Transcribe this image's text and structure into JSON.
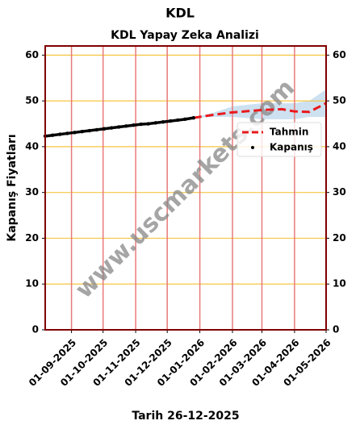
{
  "chart_data": {
    "type": "line",
    "title": "KDL",
    "subtitle": "KDL Yapay Zeka Analizi",
    "y_label": "Kapanış Fiyatları",
    "x_label": "Tarih 26-12-2025",
    "watermark": "www.uscmarkets.com",
    "xlim": [
      "07-08-2025",
      "01-05-2026"
    ],
    "xticks": [
      "01-09-2025",
      "01-10-2025",
      "01-11-2025",
      "01-12-2025",
      "01-01-2026",
      "01-02-2026",
      "01-03-2026",
      "01-04-2026",
      "01-05-2026"
    ],
    "ylim": [
      0,
      62
    ],
    "yticks": [
      0,
      10,
      20,
      30,
      40,
      50,
      60
    ],
    "grid": true,
    "legend": "upper right",
    "series": [
      {
        "name": "Tahmin",
        "color": "#e8191c",
        "style": "dashed",
        "x": [
          "26-12-2025",
          "15-01-2026",
          "01-02-2026",
          "01-03-2026",
          "20-03-2026",
          "01-04-2026",
          "15-04-2026",
          "01-05-2026"
        ],
        "values": [
          46.3,
          47.0,
          47.5,
          48.0,
          48.2,
          47.7,
          47.6,
          49.5
        ]
      },
      {
        "name": "Kapanış",
        "color": "#000000",
        "style": "dots",
        "x": [
          "07-08-2025",
          "14-08-2025",
          "21-08-2025",
          "28-08-2025",
          "04-09-2025",
          "11-09-2025",
          "18-09-2025",
          "25-09-2025",
          "02-10-2025",
          "09-10-2025",
          "16-10-2025",
          "23-10-2025",
          "30-10-2025",
          "06-11-2025",
          "13-11-2025",
          "20-11-2025",
          "27-11-2025",
          "04-12-2025",
          "11-12-2025",
          "18-12-2025",
          "26-12-2025"
        ],
        "values": [
          42.3,
          42.5,
          42.7,
          42.9,
          43.1,
          43.3,
          43.5,
          43.7,
          43.9,
          44.1,
          44.3,
          44.5,
          44.7,
          44.9,
          45.0,
          45.2,
          45.4,
          45.6,
          45.8,
          46.0,
          46.3
        ]
      }
    ],
    "band": {
      "color": "#b8d4ea",
      "x": [
        "26-12-2025",
        "15-01-2026",
        "01-02-2026",
        "01-03-2026",
        "20-03-2026",
        "01-04-2026",
        "15-04-2026",
        "01-05-2026"
      ],
      "lower": [
        46.3,
        46.5,
        46.5,
        46.0,
        46.0,
        46.0,
        46.5,
        46.5
      ],
      "upper": [
        46.3,
        47.5,
        48.8,
        49.5,
        49.5,
        49.5,
        50.0,
        52.5
      ]
    }
  }
}
